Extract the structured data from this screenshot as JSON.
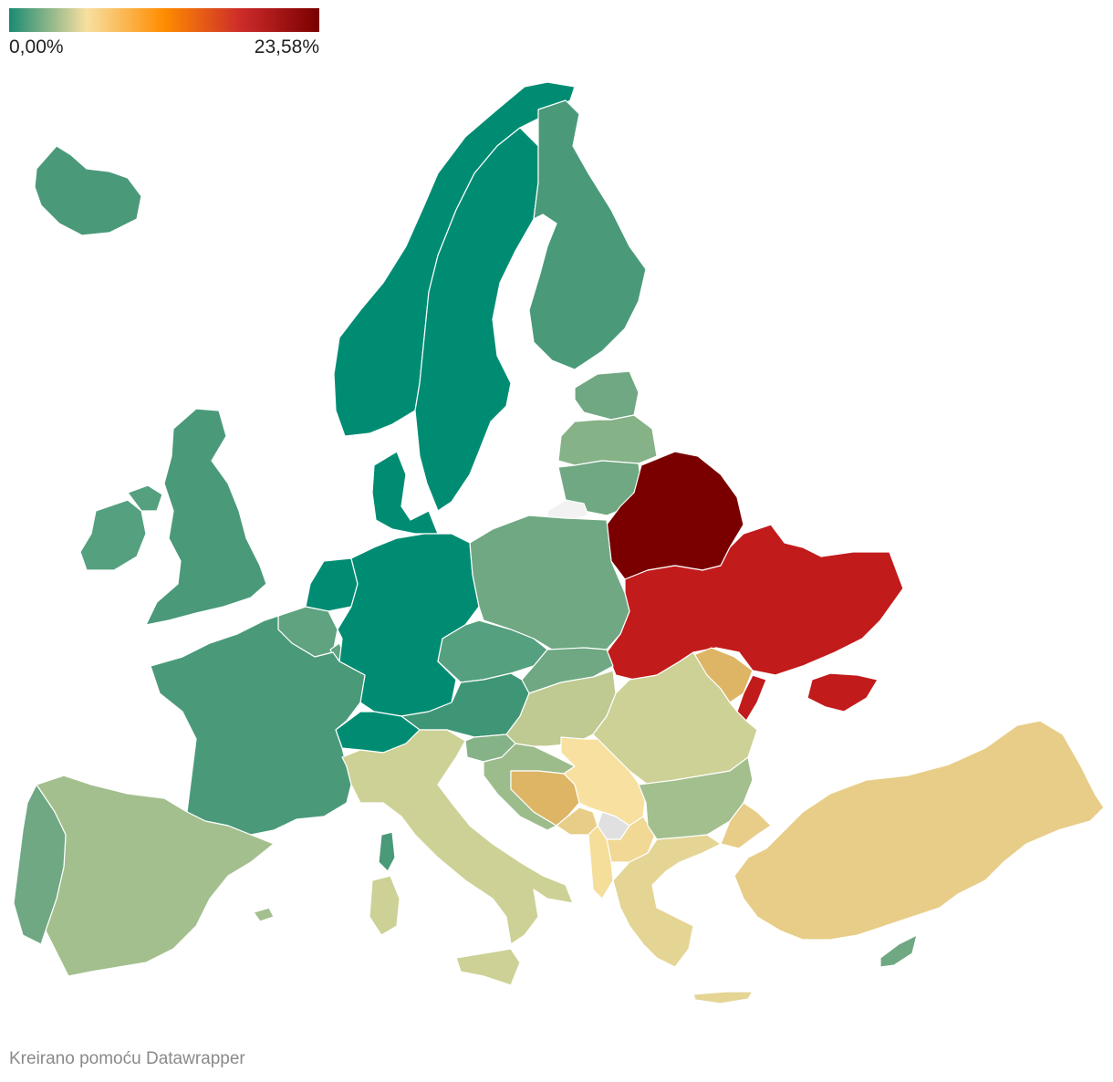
{
  "legend": {
    "min_label": "0,00%",
    "max_label": "23,58%",
    "gradient_colors": [
      "#1a8a72",
      "#f7e0a0",
      "#ff8c00",
      "#cc2a2a",
      "#7a0000"
    ]
  },
  "credit": "Kreirano pomoću Datawrapper",
  "colors": {
    "no_data": "#e0e0e0",
    "outside": "#f2f2f2"
  },
  "regions": [
    {
      "id": "iceland",
      "fill": "#4a9a7a"
    },
    {
      "id": "norway",
      "fill": "#008c73"
    },
    {
      "id": "sweden",
      "fill": "#008c73"
    },
    {
      "id": "finland",
      "fill": "#4a9a7a"
    },
    {
      "id": "estonia",
      "fill": "#6fa882"
    },
    {
      "id": "latvia",
      "fill": "#86b287"
    },
    {
      "id": "lithuania",
      "fill": "#6fa882"
    },
    {
      "id": "kaliningrad",
      "fill": "#f2f2f2"
    },
    {
      "id": "belarus",
      "fill": "#7a0000"
    },
    {
      "id": "ukraine",
      "fill": "#c21b1b"
    },
    {
      "id": "crimea",
      "fill": "#c21b1b"
    },
    {
      "id": "moldova",
      "fill": "#ddb565"
    },
    {
      "id": "transnistria",
      "fill": "#c21b1b"
    },
    {
      "id": "ireland",
      "fill": "#55a07f"
    },
    {
      "id": "northern-ireland",
      "fill": "#55a07f"
    },
    {
      "id": "great-britain",
      "fill": "#4a9a7a"
    },
    {
      "id": "denmark",
      "fill": "#008c73"
    },
    {
      "id": "netherlands",
      "fill": "#008c73"
    },
    {
      "id": "belgium",
      "fill": "#5fa380"
    },
    {
      "id": "luxembourg",
      "fill": "#5fa380"
    },
    {
      "id": "germany",
      "fill": "#008c73"
    },
    {
      "id": "poland",
      "fill": "#6fa882"
    },
    {
      "id": "czechia",
      "fill": "#55a07f"
    },
    {
      "id": "slovakia",
      "fill": "#6fa882"
    },
    {
      "id": "austria",
      "fill": "#3f9676"
    },
    {
      "id": "switzerland",
      "fill": "#008c73"
    },
    {
      "id": "france",
      "fill": "#4a9a7a"
    },
    {
      "id": "spain",
      "fill": "#a3bf8e"
    },
    {
      "id": "portugal",
      "fill": "#6fa882"
    },
    {
      "id": "italy",
      "fill": "#cdd195"
    },
    {
      "id": "sicily",
      "fill": "#cdd195"
    },
    {
      "id": "sardinia",
      "fill": "#cdd195"
    },
    {
      "id": "corsica",
      "fill": "#4a9a7a"
    },
    {
      "id": "balearics",
      "fill": "#a3bf8e"
    },
    {
      "id": "slovenia",
      "fill": "#86b287"
    },
    {
      "id": "croatia",
      "fill": "#9cbc8c"
    },
    {
      "id": "hungary",
      "fill": "#bfca92"
    },
    {
      "id": "romania",
      "fill": "#cdd195"
    },
    {
      "id": "bosnia",
      "fill": "#ddb565"
    },
    {
      "id": "serbia",
      "fill": "#f7e0a0"
    },
    {
      "id": "montenegro",
      "fill": "#e8cd88"
    },
    {
      "id": "kosovo",
      "fill": "#e0e0e0"
    },
    {
      "id": "north-macedonia",
      "fill": "#f1d894"
    },
    {
      "id": "albania",
      "fill": "#f5dd9a"
    },
    {
      "id": "bulgaria",
      "fill": "#a3bf8e"
    },
    {
      "id": "greece",
      "fill": "#e4d594"
    },
    {
      "id": "crete",
      "fill": "#e4d594"
    },
    {
      "id": "turkey",
      "fill": "#e8cd88"
    },
    {
      "id": "turkey-thrace",
      "fill": "#e8cd88"
    },
    {
      "id": "cyprus",
      "fill": "#6fa882"
    }
  ]
}
